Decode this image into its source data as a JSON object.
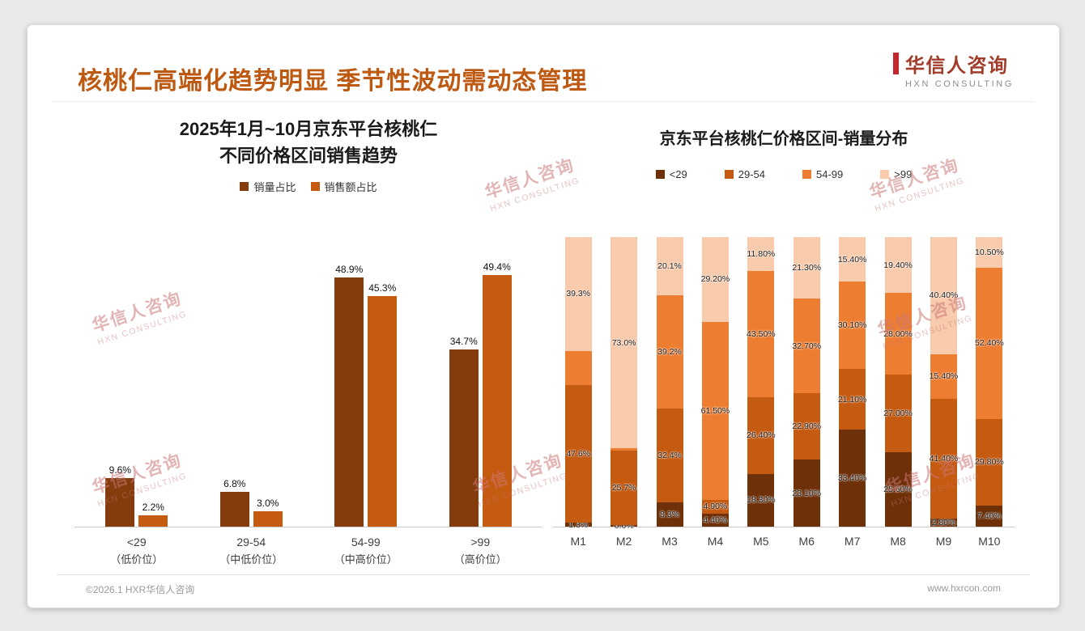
{
  "header": {
    "title": "核桃仁高端化趋势明显 季节性波动需动态管理",
    "title_color": "#BE5912"
  },
  "logo": {
    "cn": "华信人咨询",
    "en": "HXN CONSULTING"
  },
  "watermark": {
    "cn": "华信人咨询",
    "en": "HXN CONSULTING"
  },
  "footer": {
    "left": "©2026.1 HXR华信人咨询",
    "right": "www.hxrcon.com"
  },
  "colors": {
    "brand_title": "#BE5912",
    "logo_red": "#C1272D",
    "series_dark_brown": "#843C0C",
    "series_dark_orange": "#C55A11",
    "series_orange": "#ED7D31",
    "series_peach": "#F8CBAD"
  },
  "chart_data": [
    {
      "type": "bar",
      "title": "2025年1月~10月京东平台核桃仁\n不同价格区间销售趋势",
      "categories": [
        "<29",
        "29-54",
        "54-99",
        ">99"
      ],
      "category_sublabels": [
        "（低价位）",
        "（中低价位）",
        "（中高价位）",
        "（高价位）"
      ],
      "series": [
        {
          "name": "销量占比",
          "color": "#843C0C",
          "values": [
            9.6,
            6.8,
            48.9,
            34.7
          ],
          "labels": [
            "9.6%",
            "6.8%",
            "48.9%",
            "34.7%"
          ]
        },
        {
          "name": "销售额占比",
          "color": "#C55A11",
          "values": [
            2.2,
            3.0,
            45.3,
            49.4
          ],
          "labels": [
            "2.2%",
            "3.0%",
            "45.3%",
            "49.4%"
          ]
        }
      ],
      "unit": "%",
      "xlabel": "",
      "ylabel": "",
      "ylim": [
        0,
        55
      ],
      "grid": false,
      "legend_position": "top"
    },
    {
      "type": "stacked-bar-100",
      "title": "京东平台核桃仁价格区间-销量分布",
      "categories": [
        "M1",
        "M2",
        "M3",
        "M4",
        "M5",
        "M6",
        "M7",
        "M8",
        "M9",
        "M10"
      ],
      "series": [
        {
          "name": "<29",
          "color": "#6E3008",
          "values": [
            1.3,
            0.6,
            8.3,
            4.4,
            18.3,
            23.1,
            33.4,
            25.6,
            2.8,
            7.4
          ],
          "labels": [
            "1.3%",
            "0.6%",
            "8.3%",
            "4.40%",
            "18.30%",
            "23.10%",
            "33.40%",
            "25.60%",
            "2.80%",
            "7.40%"
          ]
        },
        {
          "name": "29-54",
          "color": "#C55A11",
          "values": [
            47.6,
            25.7,
            32.4,
            4.9,
            26.4,
            22.9,
            21.1,
            27.0,
            41.4,
            29.8
          ],
          "labels": [
            "47.6%",
            "25.7%",
            "32.4%",
            "4.90%",
            "26.40%",
            "22.90%",
            "21.10%",
            "27.00%",
            "41.40%",
            "29.80%"
          ]
        },
        {
          "name": "54-99",
          "color": "#ED7D31",
          "values": [
            11.8,
            0.7,
            39.2,
            61.5,
            43.5,
            32.7,
            30.1,
            28.0,
            15.4,
            52.4
          ],
          "labels": [
            "",
            "",
            "39.2%",
            "61.50%",
            "43.50%",
            "32.70%",
            "30.10%",
            "28.00%",
            "15.40%",
            "52.40%"
          ]
        },
        {
          "name": ">99",
          "color": "#F8CBAD",
          "values": [
            39.3,
            73.0,
            20.1,
            29.2,
            11.8,
            21.3,
            15.4,
            19.4,
            40.4,
            10.5
          ],
          "labels": [
            "39.3%",
            "73.0%",
            "20.1%",
            "29.20%",
            "11.80%",
            "21.30%",
            "15.40%",
            "19.40%",
            "40.40%",
            "10.50%"
          ]
        }
      ],
      "unit": "%",
      "xlabel": "",
      "ylabel": "",
      "ylim": [
        0,
        100
      ],
      "grid": false,
      "legend_position": "top"
    }
  ]
}
